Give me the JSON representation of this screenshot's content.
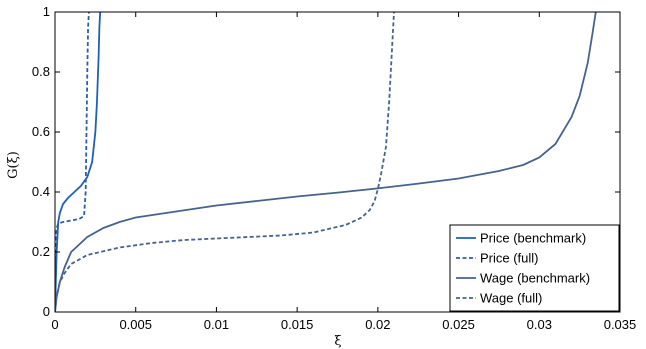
{
  "chart_data": {
    "type": "line",
    "xlabel": "ξ",
    "ylabel": "G(ξ)",
    "xlim": [
      0,
      0.035
    ],
    "ylim": [
      0,
      1
    ],
    "x_ticks": [
      "0",
      "0.005",
      "0.01",
      "0.015",
      "0.02",
      "0.025",
      "0.03",
      "0.035"
    ],
    "y_ticks": [
      "0",
      "0.2",
      "0.4",
      "0.6",
      "0.8",
      "1"
    ],
    "grid": false,
    "legend_position": "bottom-right",
    "series": [
      {
        "name": "Price (benchmark)",
        "color": "#1f5fb8",
        "dash": "solid",
        "x": [
          0,
          5e-05,
          0.0001,
          0.0002,
          0.0003,
          0.0005,
          0.0008,
          0.0012,
          0.0016,
          0.002,
          0.0023,
          0.0025,
          0.0026,
          0.0027,
          0.00275,
          0.0028
        ],
        "y": [
          0,
          0.1,
          0.2,
          0.3,
          0.33,
          0.36,
          0.38,
          0.4,
          0.42,
          0.45,
          0.5,
          0.6,
          0.7,
          0.85,
          0.95,
          1.0
        ]
      },
      {
        "name": "Price (full)",
        "color": "#2a5db0",
        "dash": "dashed",
        "x": [
          0,
          5e-05,
          0.0001,
          0.0002,
          0.0005,
          0.001,
          0.0015,
          0.0018,
          0.0019,
          0.00195,
          0.002,
          0.00205,
          0.0021
        ],
        "y": [
          0,
          0.2,
          0.28,
          0.295,
          0.3,
          0.305,
          0.31,
          0.32,
          0.4,
          0.6,
          0.8,
          0.95,
          1.0
        ]
      },
      {
        "name": "Wage (benchmark)",
        "color": "#46638f",
        "dash": "solid",
        "x": [
          0,
          0.0001,
          0.0003,
          0.0006,
          0.001,
          0.002,
          0.003,
          0.004,
          0.005,
          0.0075,
          0.01,
          0.0125,
          0.015,
          0.0175,
          0.02,
          0.0225,
          0.025,
          0.0275,
          0.029,
          0.03,
          0.031,
          0.032,
          0.0325,
          0.033,
          0.0333,
          0.0335
        ],
        "y": [
          0,
          0.05,
          0.1,
          0.15,
          0.2,
          0.25,
          0.28,
          0.3,
          0.315,
          0.335,
          0.355,
          0.37,
          0.385,
          0.398,
          0.412,
          0.428,
          0.445,
          0.47,
          0.49,
          0.515,
          0.56,
          0.65,
          0.72,
          0.83,
          0.93,
          1.0
        ]
      },
      {
        "name": "Wage (full)",
        "color": "#46638f",
        "dash": "dashed",
        "x": [
          0,
          0.0001,
          0.0003,
          0.0006,
          0.001,
          0.002,
          0.004,
          0.006,
          0.008,
          0.01,
          0.012,
          0.014,
          0.016,
          0.018,
          0.019,
          0.0195,
          0.0198,
          0.02,
          0.0202,
          0.0205,
          0.0207,
          0.0209,
          0.021
        ],
        "y": [
          0,
          0.05,
          0.1,
          0.13,
          0.16,
          0.19,
          0.215,
          0.23,
          0.24,
          0.245,
          0.25,
          0.255,
          0.265,
          0.29,
          0.315,
          0.34,
          0.37,
          0.41,
          0.46,
          0.55,
          0.7,
          0.9,
          1.0
        ]
      }
    ]
  }
}
